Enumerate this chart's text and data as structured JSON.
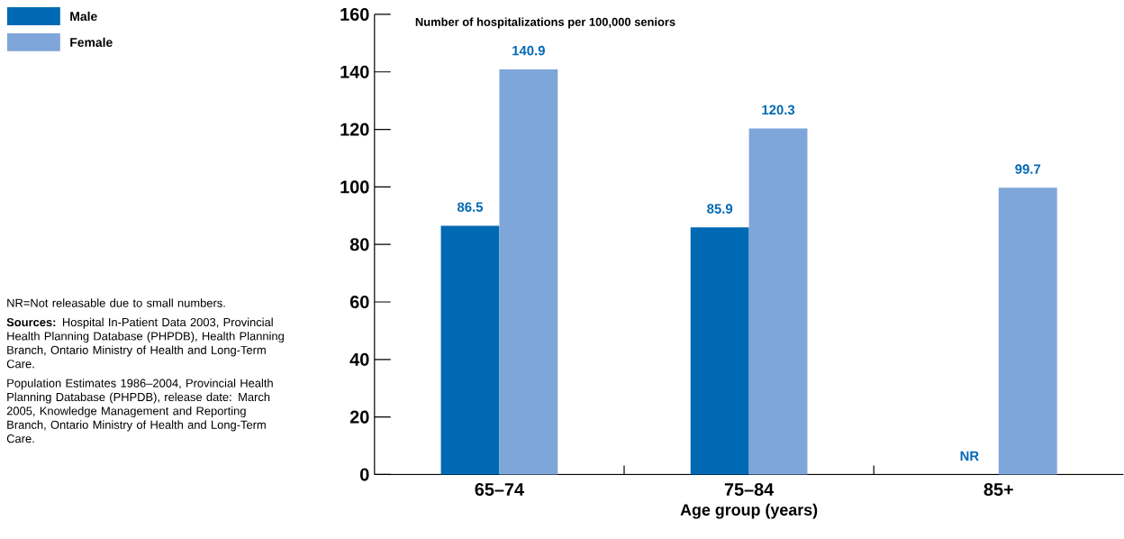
{
  "chart_data": {
    "type": "bar",
    "ylabel": "Number of hospitalizations per 100,000 seniors",
    "xlabel": "Age group (years)",
    "categories": [
      "65–74",
      "75–84",
      "85+"
    ],
    "series": [
      {
        "name": "Male",
        "color": "#0069b4",
        "values": [
          86.5,
          85.9,
          null
        ],
        "value_labels": [
          "86.5",
          "85.9",
          "NR"
        ]
      },
      {
        "name": "Female",
        "color": "#7fa6d8",
        "values": [
          140.9,
          120.3,
          99.7
        ],
        "value_labels": [
          "140.9",
          "120.3",
          "99.7"
        ]
      }
    ],
    "ylim": [
      0,
      160
    ],
    "yticks": [
      0,
      20,
      40,
      60,
      80,
      100,
      120,
      140,
      160
    ],
    "legend": "top left",
    "annotations": [
      "NR=Not releasable due to small numbers.",
      "**Sources:** Hospital In-Patient Data 2003, Provincial Health Planning Database (PHPDB), Health Planning Branch, Ontario Ministry of Health and Long-Term Care.",
      "Population Estimates 1986–2004, Provincial Health Planning Database (PHPDB), release date: March 2005, Knowledge Management and Reporting Branch, Ontario Ministry of Health and Long-Term Care."
    ]
  }
}
